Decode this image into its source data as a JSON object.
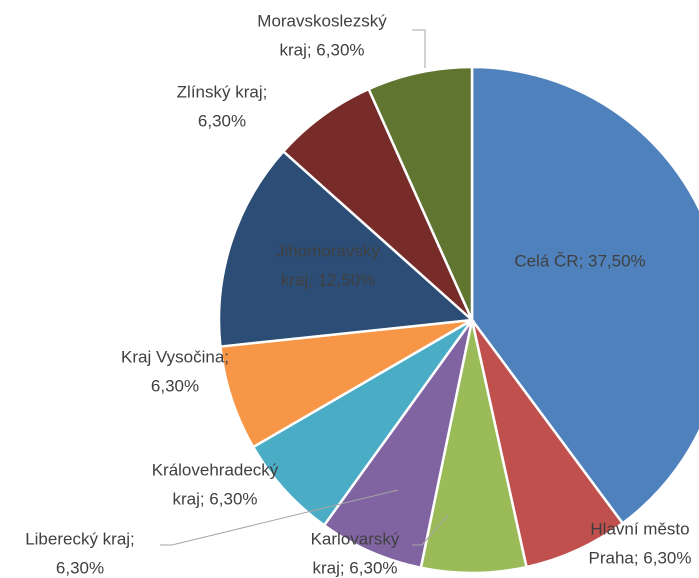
{
  "chart_data": {
    "type": "pie",
    "values": [
      37.5,
      6.3,
      6.3,
      6.3,
      6.3,
      6.3,
      12.5,
      6.3,
      6.3
    ],
    "value_labels": [
      [
        "Celá ČR; 37,50%"
      ],
      [
        "Hlavní město",
        "Praha; 6,30%"
      ],
      [
        "Karlovarský",
        "kraj; 6,30%"
      ],
      [
        "Liberecký kraj;",
        "6,30%"
      ],
      [
        "Královehradecký",
        "kraj; 6,30%"
      ],
      [
        "Kraj Vysočina;",
        "6,30%"
      ],
      [
        "Jihomoravský",
        "kraj; 12,50%"
      ],
      [
        "Zlínský kraj;",
        "6,30%"
      ],
      [
        "Moravskoslezský",
        "kraj; 6,30%"
      ]
    ],
    "colors": [
      "#4f81bd",
      "#c0504d",
      "#9bbb59",
      "#8064a2",
      "#4bacc6",
      "#f79646",
      "#2c4d75",
      "#772c2a",
      "#5f7530"
    ]
  }
}
